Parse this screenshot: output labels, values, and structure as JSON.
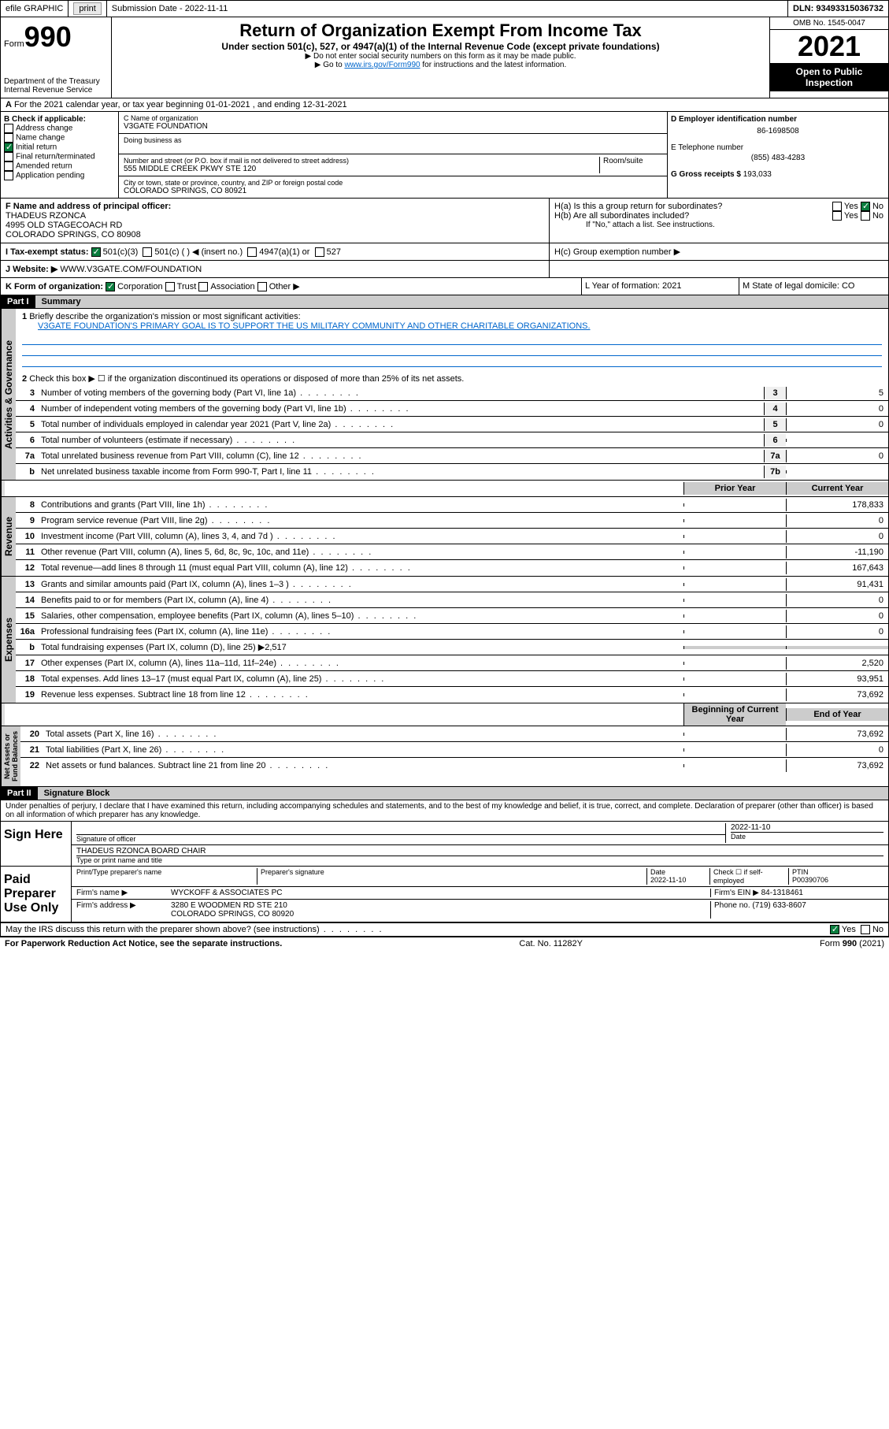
{
  "top": {
    "efile": "efile GRAPHIC",
    "print": "print",
    "subdate_lbl": "Submission Date - 2022-11-11",
    "dln_lbl": "DLN: 93493315036732"
  },
  "header": {
    "form": "Form",
    "num": "990",
    "dept": "Department of the Treasury",
    "irs": "Internal Revenue Service",
    "title": "Return of Organization Exempt From Income Tax",
    "sub": "Under section 501(c), 527, or 4947(a)(1) of the Internal Revenue Code (except private foundations)",
    "note1": "▶ Do not enter social security numbers on this form as it may be made public.",
    "note2": "▶ Go to ",
    "link": "www.irs.gov/Form990",
    "note3": " for instructions and the latest information.",
    "omb": "OMB No. 1545-0047",
    "year": "2021",
    "open": "Open to Public Inspection"
  },
  "rowA": "For the 2021 calendar year, or tax year beginning 01-01-2021   , and ending 12-31-2021",
  "B": {
    "hdr": "B Check if applicable:",
    "opts": [
      "Address change",
      "Name change",
      "Initial return",
      "Final return/terminated",
      "Amended return",
      "Application pending"
    ],
    "checked": 2
  },
  "C": {
    "name_lbl": "C Name of organization",
    "name": "V3GATE FOUNDATION",
    "dba": "Doing business as",
    "addr_lbl": "Number and street (or P.O. box if mail is not delivered to street address)",
    "addr": "555 MIDDLE CREEK PKWY STE 120",
    "room": "Room/suite",
    "city_lbl": "City or town, state or province, country, and ZIP or foreign postal code",
    "city": "COLORADO SPRINGS, CO  80921"
  },
  "D": {
    "lbl": "D Employer identification number",
    "val": "86-1698508"
  },
  "E": {
    "lbl": "E Telephone number",
    "val": "(855) 483-4283"
  },
  "G": {
    "lbl": "G Gross receipts $",
    "val": "193,033"
  },
  "F": {
    "lbl": "F  Name and address of principal officer:",
    "name": "THADEUS RZONCA",
    "addr1": "4995 OLD STAGECOACH RD",
    "addr2": "COLORADO SPRINGS, CO  80908"
  },
  "H": {
    "a": "H(a)  Is this a group return for subordinates?",
    "b": "H(b)  Are all subordinates included?",
    "note": "If \"No,\" attach a list. See instructions.",
    "c": "H(c)  Group exemption number ▶"
  },
  "I": {
    "lbl": "I    Tax-exempt status:",
    "opts": [
      "501(c)(3)",
      "501(c) (  ) ◀ (insert no.)",
      "4947(a)(1) or",
      "527"
    ]
  },
  "J": {
    "lbl": "J   Website: ▶",
    "val": "WWW.V3GATE.COM/FOUNDATION"
  },
  "K": {
    "lbl": "K Form of organization:",
    "opts": [
      "Corporation",
      "Trust",
      "Association",
      "Other ▶"
    ]
  },
  "L": {
    "lbl": "L Year of formation: 2021"
  },
  "M": {
    "lbl": "M State of legal domicile: CO"
  },
  "part1": {
    "hdr": "Part I",
    "title": "Summary",
    "l1": "Briefly describe the organization's mission or most significant activities:",
    "mission": "V3GATE FOUNDATION'S PRIMARY GOAL IS TO SUPPORT THE US MILITARY COMMUNITY AND OTHER CHARITABLE ORGANIZATIONS.",
    "l2": "Check this box ▶ ☐  if the organization discontinued its operations or disposed of more than 25% of its net assets.",
    "lines_gov": [
      {
        "n": "3",
        "t": "Number of voting members of the governing body (Part VI, line 1a)",
        "v": "5"
      },
      {
        "n": "4",
        "t": "Number of independent voting members of the governing body (Part VI, line 1b)",
        "v": "0"
      },
      {
        "n": "5",
        "t": "Total number of individuals employed in calendar year 2021 (Part V, line 2a)",
        "v": "0"
      },
      {
        "n": "6",
        "t": "Total number of volunteers (estimate if necessary)",
        "v": ""
      },
      {
        "n": "7a",
        "t": "Total unrelated business revenue from Part VIII, column (C), line 12",
        "v": "0"
      },
      {
        "n": "b",
        "t": "Net unrelated business taxable income from Form 990-T, Part I, line 11",
        "box": "7b",
        "v": ""
      }
    ],
    "col_prior": "Prior Year",
    "col_curr": "Current Year",
    "rev": [
      {
        "n": "8",
        "t": "Contributions and grants (Part VIII, line 1h)",
        "p": "",
        "c": "178,833"
      },
      {
        "n": "9",
        "t": "Program service revenue (Part VIII, line 2g)",
        "p": "",
        "c": "0"
      },
      {
        "n": "10",
        "t": "Investment income (Part VIII, column (A), lines 3, 4, and 7d )",
        "p": "",
        "c": "0"
      },
      {
        "n": "11",
        "t": "Other revenue (Part VIII, column (A), lines 5, 6d, 8c, 9c, 10c, and 11e)",
        "p": "",
        "c": "-11,190"
      },
      {
        "n": "12",
        "t": "Total revenue—add lines 8 through 11 (must equal Part VIII, column (A), line 12)",
        "p": "",
        "c": "167,643"
      }
    ],
    "exp": [
      {
        "n": "13",
        "t": "Grants and similar amounts paid (Part IX, column (A), lines 1–3 )",
        "p": "",
        "c": "91,431"
      },
      {
        "n": "14",
        "t": "Benefits paid to or for members (Part IX, column (A), line 4)",
        "p": "",
        "c": "0"
      },
      {
        "n": "15",
        "t": "Salaries, other compensation, employee benefits (Part IX, column (A), lines 5–10)",
        "p": "",
        "c": "0"
      },
      {
        "n": "16a",
        "t": "Professional fundraising fees (Part IX, column (A), line 11e)",
        "p": "",
        "c": "0"
      },
      {
        "n": "b",
        "t": "Total fundraising expenses (Part IX, column (D), line 25) ▶2,517",
        "nobox": true
      },
      {
        "n": "17",
        "t": "Other expenses (Part IX, column (A), lines 11a–11d, 11f–24e)",
        "p": "",
        "c": "2,520"
      },
      {
        "n": "18",
        "t": "Total expenses. Add lines 13–17 (must equal Part IX, column (A), line 25)",
        "p": "",
        "c": "93,951"
      },
      {
        "n": "19",
        "t": "Revenue less expenses. Subtract line 18 from line 12",
        "p": "",
        "c": "73,692"
      }
    ],
    "col_beg": "Beginning of Current Year",
    "col_end": "End of Year",
    "net": [
      {
        "n": "20",
        "t": "Total assets (Part X, line 16)",
        "p": "",
        "c": "73,692"
      },
      {
        "n": "21",
        "t": "Total liabilities (Part X, line 26)",
        "p": "",
        "c": "0"
      },
      {
        "n": "22",
        "t": "Net assets or fund balances. Subtract line 21 from line 20",
        "p": "",
        "c": "73,692"
      }
    ]
  },
  "part2": {
    "hdr": "Part II",
    "title": "Signature Block",
    "decl": "Under penalties of perjury, I declare that I have examined this return, including accompanying schedules and statements, and to the best of my knowledge and belief, it is true, correct, and complete. Declaration of preparer (other than officer) is based on all information of which preparer has any knowledge."
  },
  "sign": {
    "lbl": "Sign Here",
    "sig_lbl": "Signature of officer",
    "date": "2022-11-10",
    "date_lbl": "Date",
    "name": "THADEUS RZONCA  BOARD CHAIR",
    "name_lbl": "Type or print name and title"
  },
  "paid": {
    "lbl": "Paid Preparer Use Only",
    "h1": "Print/Type preparer's name",
    "h2": "Preparer's signature",
    "h3": "Date",
    "h3v": "2022-11-10",
    "h4": "Check ☐ if self-employed",
    "h5": "PTIN",
    "h5v": "P00390706",
    "firm_lbl": "Firm's name    ▶",
    "firm": "WYCKOFF & ASSOCIATES PC",
    "ein_lbl": "Firm's EIN ▶",
    "ein": "84-1318461",
    "addr_lbl": "Firm's address ▶",
    "addr1": "3280 E WOODMEN RD STE 210",
    "addr2": "COLORADO SPRINGS, CO  80920",
    "phone_lbl": "Phone no.",
    "phone": "(719) 633-8607"
  },
  "discuss": "May the IRS discuss this return with the preparer shown above? (see instructions)",
  "footer": {
    "l": "For Paperwork Reduction Act Notice, see the separate instructions.",
    "m": "Cat. No. 11282Y",
    "r": "Form 990 (2021)"
  }
}
